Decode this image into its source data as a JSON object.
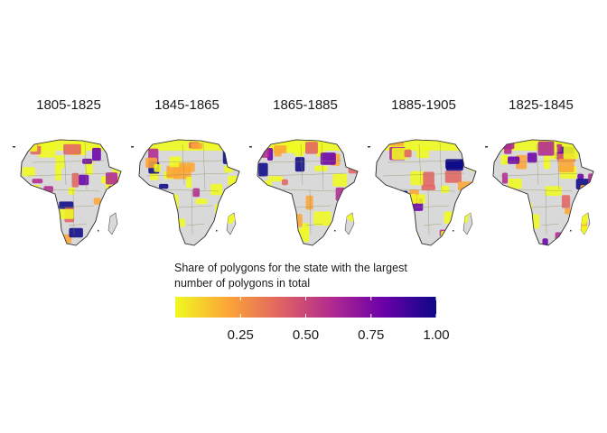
{
  "figure": {
    "panels": [
      {
        "title": "1805-1825"
      },
      {
        "title": "1845-1865"
      },
      {
        "title": "1865-1885"
      },
      {
        "title": "1885-1905"
      },
      {
        "title": "1825-1845"
      }
    ]
  },
  "legend": {
    "title_line1": "Share of polygons for the state with the largest",
    "title_line2": "number of polygons in total",
    "colormap": "plasma (reversed)",
    "range": [
      0,
      1
    ],
    "ticks": [
      0.25,
      0.5,
      0.75,
      1.0
    ],
    "tick_labels": [
      "0.25",
      "0.50",
      "0.75",
      "1.00"
    ],
    "stops": [
      "#f0f921",
      "#fca636",
      "#e16462",
      "#b12a90",
      "#6a00a8",
      "#0d0887"
    ]
  },
  "colors": {
    "land": "#d9d9d9",
    "border": "#4d4d4d"
  }
}
